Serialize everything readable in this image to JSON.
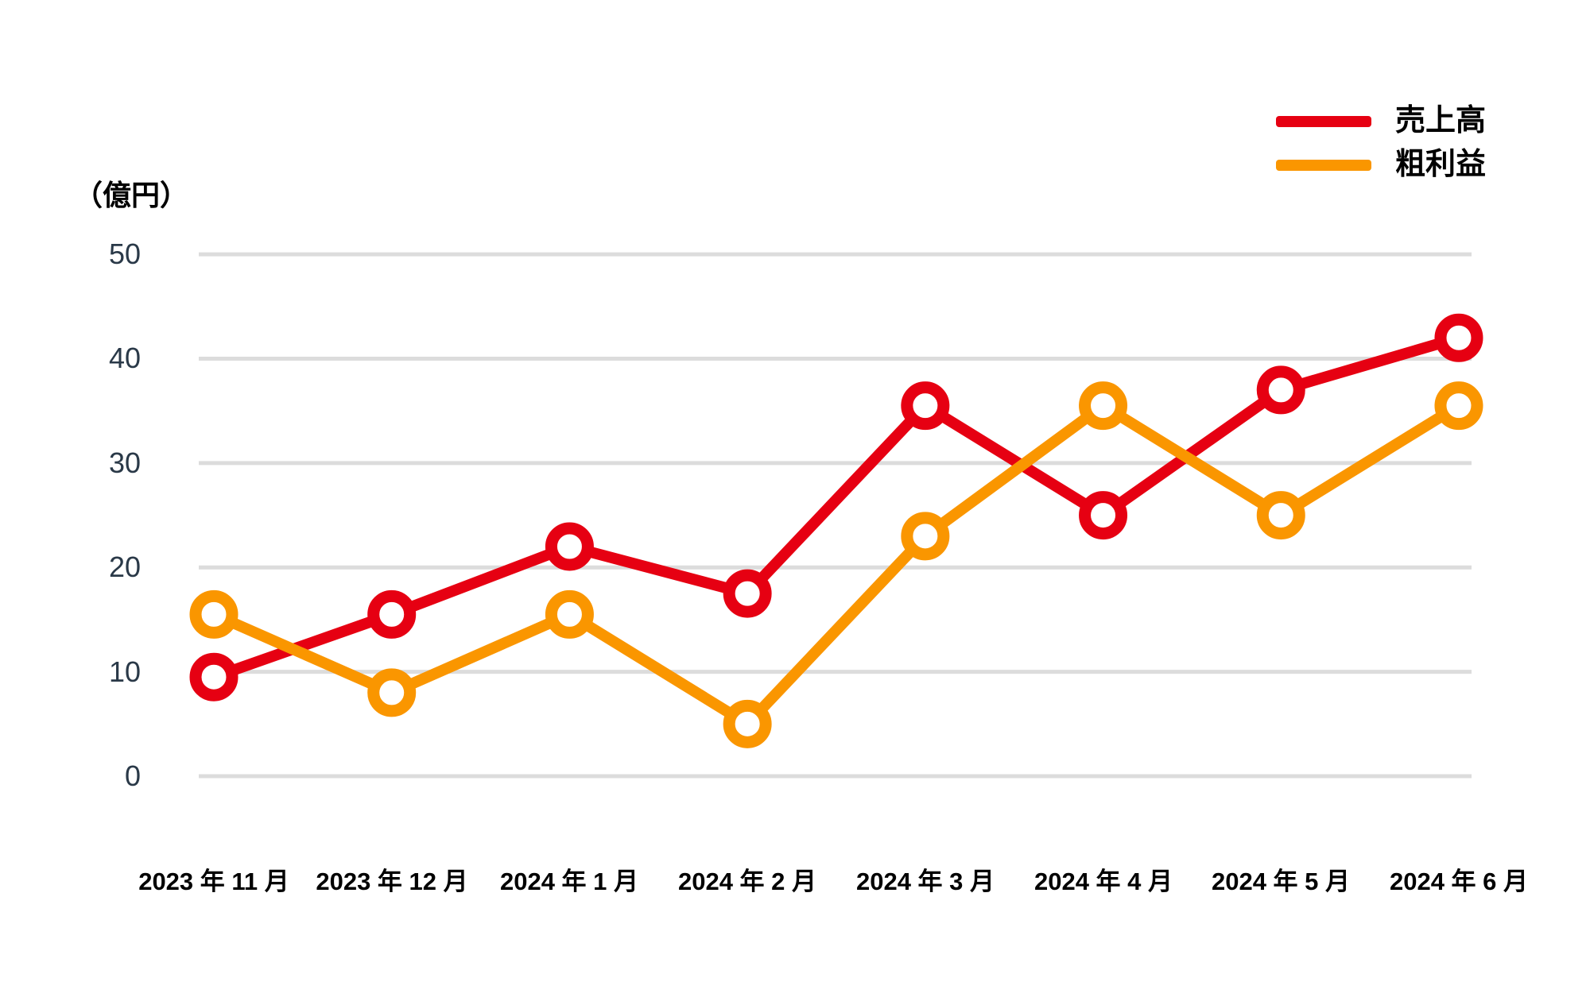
{
  "chart_data": {
    "type": "line",
    "title": "",
    "unit_label": "（億円）",
    "categories": [
      "2023 年 11 月",
      "2023 年 12 月",
      "2024 年 1 月",
      "2024 年 2 月",
      "2024 年 3 月",
      "2024 年 4 月",
      "2024 年 5 月",
      "2024 年 6 月"
    ],
    "y_ticks": [
      50,
      40,
      30,
      20,
      10,
      0
    ],
    "ylim": [
      0,
      50
    ],
    "grid": "horizontal",
    "legend_position": "top-right",
    "colors": {
      "background": "#FFFFFF",
      "grid": "#DCDCDC",
      "axis_text": "#2A3948",
      "label_text": "#000000"
    },
    "series": [
      {
        "name": "売上高",
        "color": "#E60012",
        "values": [
          9.5,
          15.5,
          22,
          17.5,
          35.5,
          25,
          37,
          42
        ]
      },
      {
        "name": "粗利益",
        "color": "#FA9600",
        "values": [
          15.5,
          8,
          15.5,
          5,
          23,
          35.5,
          25,
          35.5
        ]
      }
    ]
  }
}
